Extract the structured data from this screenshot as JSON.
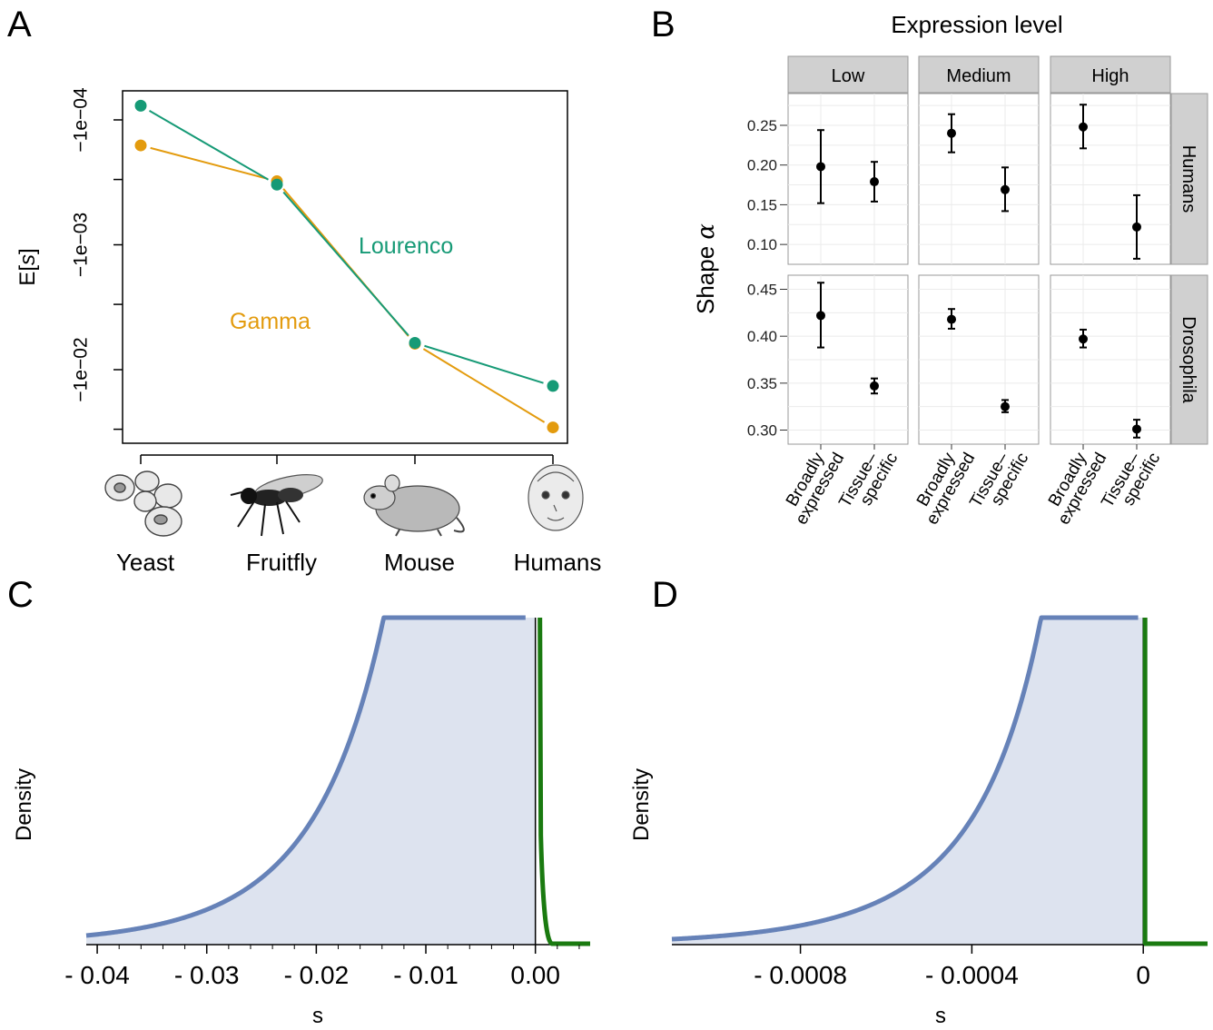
{
  "panels": {
    "a": "A",
    "b": "B",
    "c": "C",
    "d": "D"
  },
  "colors": {
    "lourenco": "#169a76",
    "gamma": "#e39b0e",
    "blue": "#6682b8",
    "blue_fill": "#dde3ef",
    "green": "#1a7a10"
  },
  "chart_data": [
    {
      "panel": "A",
      "type": "line",
      "ylabel_prefix": "E[",
      "ylabel_var": "s",
      "ylabel_suffix": "]",
      "y_scale": "log (negative values)",
      "yticks": [
        "−1e−04",
        "−1e−03",
        "−1e−02"
      ],
      "categories": [
        "Yeast",
        "Fruitfly",
        "Mouse",
        "Humans"
      ],
      "category_icons": [
        "yeast-icon",
        "fruitfly-icon",
        "mouse-icon",
        "human-baby-icon"
      ],
      "series": [
        {
          "name": "Lourenco",
          "values": [
            -7.7e-05,
            -0.00033,
            -0.0061,
            -0.0135
          ]
        },
        {
          "name": "Gamma",
          "values": [
            -0.00016,
            -0.00031,
            -0.0062,
            -0.029
          ]
        }
      ],
      "ylim": [
        -0.05,
        -6e-05
      ]
    },
    {
      "panel": "B",
      "type": "scatter",
      "title": "Expression level",
      "ylabel_prefix": "Shape",
      "ylabel_symbol": "α",
      "columns": [
        "Low",
        "Medium",
        "High"
      ],
      "rows": [
        "Humans",
        "Drosophila"
      ],
      "categories": [
        "Broadly expressed",
        "Tissue–specific"
      ],
      "category_lines": [
        [
          "Broadly",
          "expressed"
        ],
        [
          "Tissue–",
          "specific"
        ]
      ],
      "row_yticks": [
        [
          "0.25",
          "0.20",
          "0.15",
          "0.10"
        ],
        [
          "0.45",
          "0.40",
          "0.35",
          "0.30"
        ]
      ],
      "row_ylim": [
        [
          0.075,
          0.29
        ],
        [
          0.285,
          0.465
        ]
      ],
      "data": [
        [
          [
            {
              "y": 0.198,
              "lo": 0.152,
              "hi": 0.244
            },
            {
              "y": 0.179,
              "lo": 0.154,
              "hi": 0.204
            }
          ],
          [
            {
              "y": 0.24,
              "lo": 0.216,
              "hi": 0.264
            },
            {
              "y": 0.169,
              "lo": 0.142,
              "hi": 0.197
            }
          ],
          [
            {
              "y": 0.248,
              "lo": 0.221,
              "hi": 0.276
            },
            {
              "y": 0.122,
              "lo": 0.082,
              "hi": 0.162
            }
          ]
        ],
        [
          [
            {
              "y": 0.422,
              "lo": 0.388,
              "hi": 0.457
            },
            {
              "y": 0.347,
              "lo": 0.339,
              "hi": 0.355
            }
          ],
          [
            {
              "y": 0.418,
              "lo": 0.408,
              "hi": 0.429
            },
            {
              "y": 0.325,
              "lo": 0.319,
              "hi": 0.332
            }
          ],
          [
            {
              "y": 0.397,
              "lo": 0.388,
              "hi": 0.407
            },
            {
              "y": 0.301,
              "lo": 0.292,
              "hi": 0.311
            }
          ]
        ]
      ]
    },
    {
      "panel": "C",
      "type": "area",
      "xlabel": "s",
      "ylabel": "Density",
      "xticks": [
        "- 0.04",
        "- 0.03",
        "- 0.02",
        "- 0.01",
        "0.00"
      ],
      "xtick_values": [
        -0.04,
        -0.03,
        -0.02,
        -0.01,
        0
      ],
      "xlim": [
        -0.041,
        0.005
      ],
      "series": [
        {
          "kind": "gamma-density",
          "shape": 0.2,
          "scale": 0.01,
          "color": "blue"
        },
        {
          "kind": "positive-density",
          "support": [
            0,
            0.0015
          ],
          "color": "green"
        }
      ]
    },
    {
      "panel": "D",
      "type": "area",
      "xlabel": "s",
      "ylabel": "Density",
      "xticks": [
        "- 0.0008",
        "- 0.0004",
        "0"
      ],
      "xtick_values": [
        -0.0008,
        -0.0004,
        0
      ],
      "xlim": [
        -0.0011,
        0.00015
      ],
      "series": [
        {
          "kind": "gamma-density",
          "shape": 0.2,
          "scale": 0.0003,
          "color": "blue"
        },
        {
          "kind": "point-mass",
          "at": 0,
          "color": "green"
        }
      ]
    }
  ]
}
